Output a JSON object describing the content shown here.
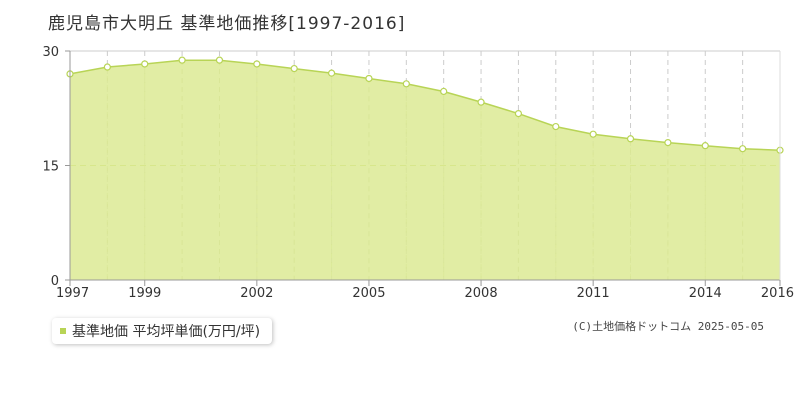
{
  "header": {
    "title": "鹿児島市大明丘 基準地価推移[1997-2016]"
  },
  "legend": {
    "label": "基準地価 平均坪単価(万円/坪)"
  },
  "credit": {
    "text": "(C)土地価格ドットコム 2025-05-05"
  },
  "colors": {
    "area_fill": "#dcea94",
    "line": "#b8d456",
    "marker_fill": "#ffffff",
    "marker_stroke": "#b8d456",
    "grid_dashed": "#cccccc",
    "grid_mid": "#b8d456",
    "axis": "#999999",
    "legend_swatch": "#b8d456"
  },
  "chart_data": {
    "type": "area",
    "title": "鹿児島市大明丘 基準地価推移[1997-2016]",
    "xlabel": "",
    "ylabel": "",
    "x": [
      1997,
      1998,
      1999,
      2000,
      2001,
      2002,
      2003,
      2004,
      2005,
      2006,
      2007,
      2008,
      2009,
      2010,
      2011,
      2012,
      2013,
      2014,
      2015,
      2016
    ],
    "series": [
      {
        "name": "基準地価 平均坪単価(万円/坪)",
        "values": [
          27.0,
          27.9,
          28.3,
          28.8,
          28.8,
          28.3,
          27.7,
          27.1,
          26.4,
          25.7,
          24.7,
          23.3,
          21.8,
          20.1,
          19.1,
          18.5,
          18.0,
          17.6,
          17.2,
          17.0
        ]
      }
    ],
    "xlim": [
      1997,
      2016
    ],
    "ylim": [
      0,
      30
    ],
    "x_tick_labels": [
      "1997",
      "1999",
      "2002",
      "2005",
      "2008",
      "2011",
      "2014",
      "2016"
    ],
    "y_tick_labels": [
      "0",
      "15",
      "30"
    ],
    "grid": true,
    "legend_position": "bottom-left"
  }
}
